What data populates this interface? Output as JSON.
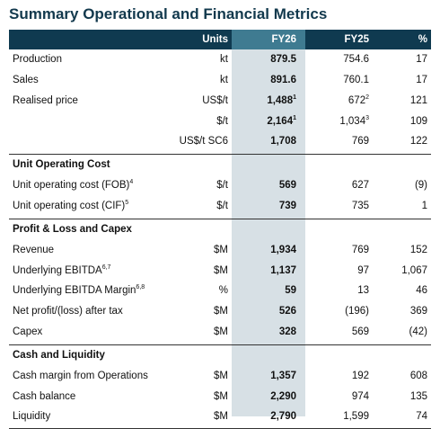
{
  "title": "Summary Operational and Financial Metrics",
  "table": {
    "header": {
      "units": "Units",
      "fy26": "FY26",
      "fy25": "FY25",
      "pct": "%"
    },
    "groups": [
      {
        "rows": [
          {
            "label": "Production",
            "units": "kt",
            "fy26": "879.5",
            "fy25": "754.6",
            "pct": "17"
          },
          {
            "label": "Sales",
            "units": "kt",
            "fy26": "891.6",
            "fy25": "760.1",
            "pct": "17"
          },
          {
            "label": "Realised price",
            "units": "US$/t",
            "fy26": "1,488",
            "fy26_sup": "1",
            "fy25": "672",
            "fy25_sup": "2",
            "pct": "121"
          },
          {
            "units": "$/t",
            "fy26": "2,164",
            "fy26_sup": "1",
            "fy25": "1,034",
            "fy25_sup": "3",
            "pct": "109"
          },
          {
            "units": "US$/t SC6",
            "fy26": "1,708",
            "fy25": "769",
            "pct": "122"
          }
        ]
      },
      {
        "heading": "Unit Operating Cost",
        "rows": [
          {
            "label": "Unit operating cost (FOB)",
            "label_sup": "4",
            "units": "$/t",
            "fy26": "569",
            "fy25": "627",
            "pct": "(9)"
          },
          {
            "label": "Unit operating cost (CIF)",
            "label_sup": "5",
            "units": "$/t",
            "fy26": "739",
            "fy25": "735",
            "pct": "1"
          }
        ]
      },
      {
        "heading": "Profit & Loss and Capex",
        "rows": [
          {
            "label": "Revenue",
            "units": "$M",
            "fy26": "1,934",
            "fy25": "769",
            "pct": "152"
          },
          {
            "label": "Underlying EBITDA",
            "label_sup": "6,7",
            "units": "$M",
            "fy26": "1,137",
            "fy25": "97",
            "pct": "1,067"
          },
          {
            "label": "Underlying EBITDA Margin",
            "label_sup": "6,8",
            "units": "%",
            "fy26": "59",
            "fy25": "13",
            "pct": "46"
          },
          {
            "label": "Net profit/(loss) after tax",
            "units": "$M",
            "fy26": "526",
            "fy25": "(196)",
            "pct": "369"
          },
          {
            "label": "Capex",
            "units": "$M",
            "fy26": "328",
            "fy25": "569",
            "pct": "(42)"
          }
        ]
      },
      {
        "heading": "Cash and Liquidity",
        "rows": [
          {
            "label": "Cash margin from Operations",
            "units": "$M",
            "fy26": "1,357",
            "fy25": "192",
            "pct": "608"
          },
          {
            "label": "Cash balance",
            "units": "$M",
            "fy26": "2,290",
            "fy25": "974",
            "pct": "135"
          },
          {
            "label": "Liquidity",
            "units": "$M",
            "fy26": "2,790",
            "fy25": "1,599",
            "pct": "74"
          }
        ]
      }
    ]
  }
}
